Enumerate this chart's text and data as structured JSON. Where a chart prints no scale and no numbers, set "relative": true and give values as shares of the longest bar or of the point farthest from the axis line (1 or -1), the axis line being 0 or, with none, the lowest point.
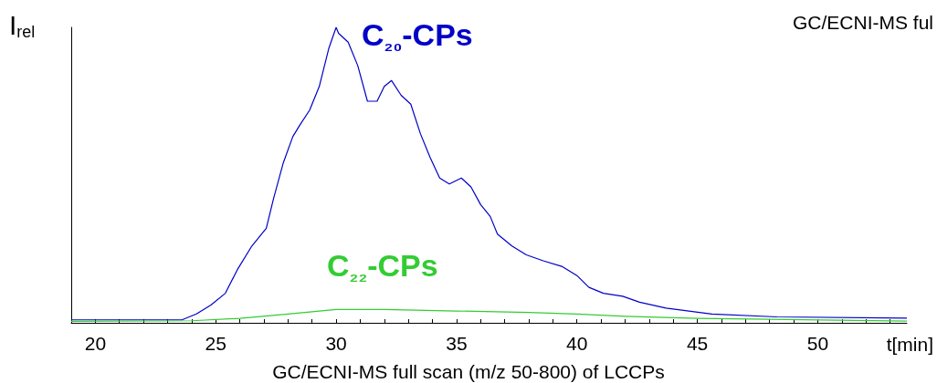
{
  "chart_data": {
    "type": "line",
    "relative": true,
    "title": "GC/ECNI-MS full scan (m/z 50-800) of LCCPs",
    "xlabel": "t[min]",
    "ylabel": "I$_{rel}$",
    "annotations": [
      "GC/ECNI-MS ful"
    ],
    "xlim": [
      19,
      53.7
    ],
    "xticks": [
      20,
      25,
      30,
      35,
      40,
      45,
      50
    ],
    "grid": false,
    "legend": false,
    "marker": "none",
    "line_style": "solid",
    "series": [
      {
        "name": "C₂₀-CPs",
        "color": "#0000c8",
        "x": [
          19,
          23.6,
          24.2,
          24.8,
          25.4,
          25.9,
          26.5,
          27.1,
          27.4,
          27.8,
          28.2,
          28.5,
          28.9,
          29.3,
          29.7,
          30.0,
          30.1,
          30.5,
          30.9,
          31.3,
          31.7,
          32.0,
          32.3,
          32.7,
          33.1,
          33.5,
          33.9,
          34.3,
          34.7,
          35.2,
          35.6,
          36.0,
          36.4,
          36.7,
          37.3,
          37.9,
          38.6,
          39.4,
          40.0,
          40.5,
          41.1,
          41.9,
          42.6,
          43.7,
          45.6,
          48.3,
          53.7
        ],
        "values": [
          0.01,
          0.01,
          0.03,
          0.06,
          0.1,
          0.18,
          0.26,
          0.32,
          0.42,
          0.54,
          0.63,
          0.67,
          0.72,
          0.8,
          0.93,
          1,
          0.98,
          0.95,
          0.87,
          0.75,
          0.75,
          0.8,
          0.82,
          0.77,
          0.74,
          0.64,
          0.56,
          0.49,
          0.47,
          0.49,
          0.46,
          0.4,
          0.36,
          0.3,
          0.26,
          0.23,
          0.21,
          0.19,
          0.16,
          0.12,
          0.1,
          0.09,
          0.07,
          0.05,
          0.03,
          0.02,
          0.016
        ]
      },
      {
        "name": "C₂₂-CPs",
        "color": "#33cc33",
        "x": [
          19,
          24,
          26,
          28,
          30,
          32,
          35,
          38,
          40,
          42,
          45,
          48,
          53.7
        ],
        "values": [
          0.005,
          0.007,
          0.015,
          0.03,
          0.045,
          0.045,
          0.04,
          0.035,
          0.03,
          0.022,
          0.015,
          0.012,
          0.006
        ]
      }
    ]
  }
}
